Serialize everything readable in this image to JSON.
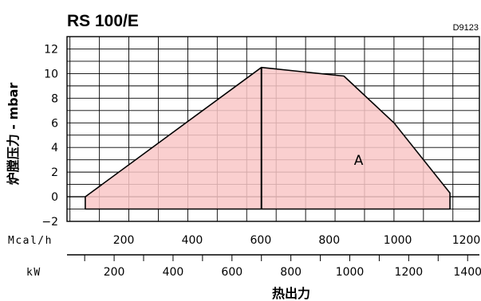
{
  "chart_data": {
    "type": "area",
    "title": "RS 100/E",
    "code": "D9123",
    "ylabel": "炉膛压力 - mbar",
    "xlabel": "热出力",
    "ylim": [
      -2,
      13
    ],
    "yticks": [
      -2,
      0,
      2,
      4,
      6,
      8,
      10,
      12
    ],
    "xlim": [
      40,
      1440
    ],
    "region_label": "A",
    "axis_kw": {
      "unit": "kW",
      "min": 40,
      "max": 1440,
      "ticks": [
        200,
        400,
        600,
        800,
        1000,
        1200,
        1400
      ]
    },
    "axis_mcal": {
      "unit": "Mcal/h",
      "ticks": [
        200,
        400,
        600,
        800,
        1000,
        1200
      ]
    },
    "region": {
      "x": [
        102,
        102,
        700,
        980,
        1150,
        1340,
        1340,
        102
      ],
      "y": [
        -1,
        0,
        10.5,
        9.8,
        6,
        0.3,
        -1,
        -1
      ]
    },
    "divider_x": 700,
    "colors": {
      "fill": "#f9c7c7",
      "line": "#000000",
      "grid": "#000000"
    }
  }
}
